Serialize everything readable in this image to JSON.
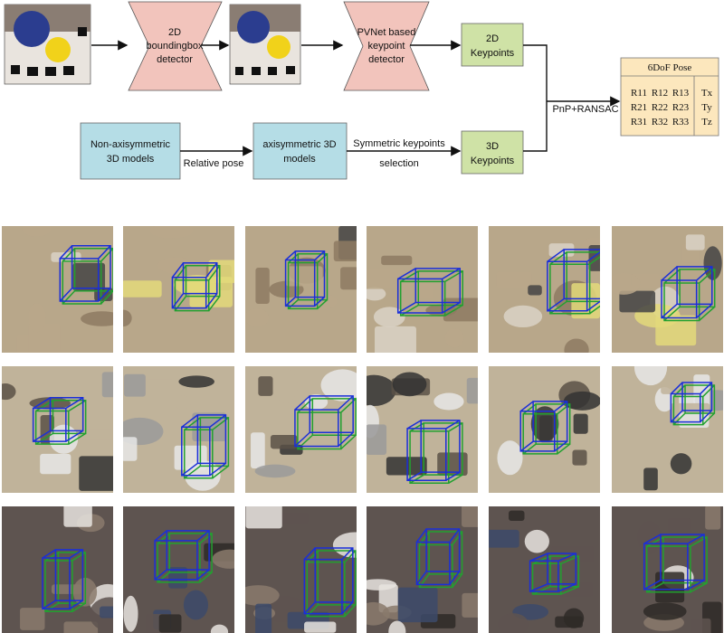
{
  "pipeline": {
    "detector_2d": [
      "2D",
      "boundingbox",
      "detector"
    ],
    "keypoint_detector": [
      "PVNet based",
      "keypoint",
      "detector"
    ],
    "keypoints_2d": [
      "2D",
      "Keypoints"
    ],
    "keypoints_3d": [
      "3D",
      "Keypoints"
    ],
    "non_axisym_models": [
      "Non-axisymmetric",
      "3D models"
    ],
    "axisym_models": [
      "axisymmetric 3D",
      "models"
    ],
    "relative_pose": "Relative pose",
    "symmetric_selection": [
      "Symmetric keypoints",
      "selection"
    ],
    "pnp_ransac": "PnP+RANSAC",
    "pose_title": "6DoF Pose",
    "rotation": [
      [
        "R11",
        "R12",
        "R13"
      ],
      [
        "R21",
        "R22",
        "R23"
      ],
      [
        "R31",
        "R32",
        "R33"
      ]
    ],
    "translation": [
      "Tx",
      "Ty",
      "Tz"
    ]
  },
  "colors": {
    "hourglass_fill": "#f2c4bc",
    "green_box": "#cfe2a6",
    "blue_box": "#b5dde6",
    "pose_box": "#fce7bd",
    "bbox_blue": "#1a2fd8",
    "bbox_green": "#22a030"
  },
  "grid": {
    "rows": [
      {
        "theme": "workbench"
      },
      {
        "theme": "parts-tray"
      },
      {
        "theme": "watering-can"
      }
    ]
  }
}
